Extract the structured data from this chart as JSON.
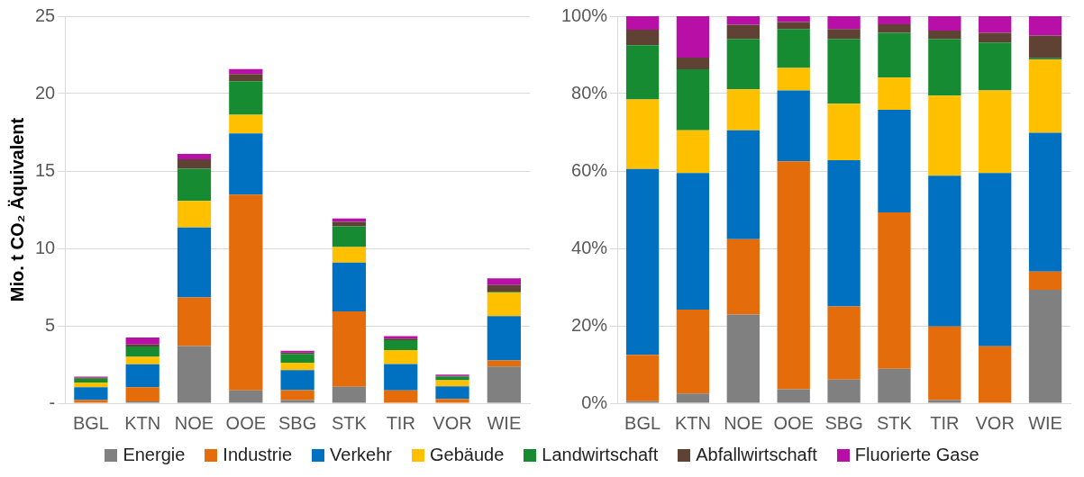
{
  "chart_data": [
    {
      "type": "bar",
      "stacked": true,
      "ylabel": "Mio. t CO₂ Äquivalent",
      "categories": [
        "BGL",
        "KTN",
        "NOE",
        "OOE",
        "SBG",
        "STK",
        "TIR",
        "VOR",
        "WIE"
      ],
      "ylim": [
        0,
        25
      ],
      "yticks": [
        {
          "value": 0,
          "label": "-"
        },
        5,
        10,
        15,
        20,
        25
      ],
      "grid": "y",
      "legend": false,
      "series": [
        {
          "color": "#808080",
          "values": [
            null,
            0.11,
            3.69,
            0.83,
            0.21,
            1.06,
            null,
            0,
            2.37
          ]
        },
        {
          "color": "#e46c0a",
          "values": [
            0.2,
            0.92,
            3.14,
            12.64,
            0.64,
            4.87,
            0.83,
            0.27,
            0.39
          ]
        },
        {
          "color": "#0070c0",
          "values": [
            0.83,
            1.49,
            4.52,
            3.96,
            1.28,
            3.15,
            1.7,
            0.82,
            2.87
          ]
        },
        {
          "color": "#ffc000",
          "values": [
            0.31,
            0.47,
            1.71,
            1.21,
            0.49,
            1.01,
            0.9,
            0.39,
            1.52
          ]
        },
        {
          "color": "#168b32",
          "values": [
            0.24,
            0.67,
            2.09,
            2.16,
            0.56,
            1.34,
            0.64,
            0.23,
            0.05
          ]
        },
        {
          "color": "#604234",
          "values": [
            0.07,
            0.13,
            0.6,
            0.46,
            0.09,
            0.29,
            0.1,
            0.05,
            0.43
          ]
        },
        {
          "color": "#b80fa6",
          "values": [
            0.06,
            0.45,
            0.35,
            0.33,
            0.11,
            0.21,
            0.16,
            0.08,
            0.44
          ]
        }
      ]
    },
    {
      "type": "bar",
      "stacked": true,
      "categories": [
        "BGL",
        "KTN",
        "NOE",
        "OOE",
        "SBG",
        "STK",
        "TIR",
        "VOR",
        "WIE"
      ],
      "ylim": [
        0,
        100
      ],
      "yticks": [
        {
          "value": 0,
          "label": "0%"
        },
        {
          "value": 20,
          "label": "20%"
        },
        {
          "value": 40,
          "label": "40%"
        },
        {
          "value": 60,
          "label": "60%"
        },
        {
          "value": 80,
          "label": "80%"
        },
        {
          "value": 100,
          "label": "100%"
        }
      ],
      "grid": "y",
      "legend": "bottom",
      "series": [
        {
          "name": "Energie",
          "color": "#808080",
          "values": [
            0.5,
            2.5,
            22.9,
            3.6,
            6.1,
            8.9,
            0.8,
            0,
            29.3
          ]
        },
        {
          "name": "Industrie",
          "color": "#e46c0a",
          "values": [
            12,
            21.7,
            19.5,
            58.9,
            18.9,
            40.4,
            19,
            14.7,
            4.7
          ]
        },
        {
          "name": "Verkehr",
          "color": "#0070c0",
          "values": [
            48,
            35.3,
            28.1,
            18.3,
            37.8,
            26.5,
            39,
            44.8,
            35.9
          ]
        },
        {
          "name": "Gebäude",
          "color": "#ffc000",
          "values": [
            18,
            11,
            10.6,
            5.8,
            14.6,
            8.3,
            20.7,
            21.3,
            18.9
          ]
        },
        {
          "name": "Landwirtschaft",
          "color": "#168b32",
          "values": [
            14,
            15.8,
            13,
            10.1,
            16.7,
            11.6,
            14.6,
            12.4,
            0.3
          ]
        },
        {
          "name": "Abfallwirtschaft",
          "color": "#604234",
          "values": [
            4,
            3,
            3.7,
            1.8,
            2.6,
            2.2,
            2.2,
            2.5,
            5.9
          ]
        },
        {
          "name": "Fluorierte Gase",
          "color": "#b80fa6",
          "values": [
            3.5,
            10.7,
            2.2,
            1.5,
            3.3,
            2.1,
            3.7,
            4.3,
            5
          ]
        }
      ]
    }
  ]
}
